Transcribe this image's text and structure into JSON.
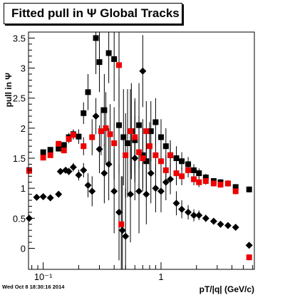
{
  "header": {
    "title": "Fitted pull in Ψ   Global Tracks"
  },
  "footer": {
    "timestamp": "Wed Oct  8 18:30:16 2014"
  },
  "chart_data": {
    "type": "scatter",
    "title": "Fitted pull in Ψ   Global Tracks",
    "xlabel": "pT/|q| (GeV/c)",
    "ylabel": "pull in Ψ",
    "xscale": "log",
    "xlim": [
      0.075,
      6.2
    ],
    "ylim": [
      -0.35,
      3.6
    ],
    "x_ticks": [
      {
        "v": 0.1,
        "label": "10⁻¹"
      },
      {
        "v": 1,
        "label": "1"
      }
    ],
    "y_ticks": [
      0,
      0.5,
      1,
      1.5,
      2,
      2.5,
      3,
      3.5
    ],
    "grid": false,
    "series": [
      {
        "marker": "square",
        "color": "#000000",
        "points": [
          [
            0.076,
            1.3,
            0.04
          ],
          [
            0.1,
            1.6,
            0.04
          ],
          [
            0.115,
            1.64,
            0.04
          ],
          [
            0.135,
            1.66,
            0.05
          ],
          [
            0.15,
            1.72,
            0.05
          ],
          [
            0.165,
            1.85,
            0.07
          ],
          [
            0.18,
            1.9,
            0.08
          ],
          [
            0.2,
            1.86,
            0.12
          ],
          [
            0.22,
            2.25,
            0.18
          ],
          [
            0.24,
            2.6,
            0.3
          ],
          [
            0.28,
            3.5,
            0.6
          ],
          [
            0.3,
            3.1,
            0.5
          ],
          [
            0.33,
            2.3,
            0.6
          ],
          [
            0.36,
            3.25,
            0.5
          ],
          [
            0.4,
            3.15,
            0.7
          ],
          [
            0.44,
            2.05,
            0.8
          ],
          [
            0.48,
            1.85,
            0.8
          ],
          [
            0.52,
            1.75,
            0.9
          ],
          [
            0.56,
            1.95,
            0.8
          ],
          [
            0.6,
            1.8,
            0.7
          ],
          [
            0.65,
            2.05,
            0.7
          ],
          [
            0.7,
            1.55,
            0.6
          ],
          [
            0.75,
            1.45,
            0.5
          ],
          [
            0.82,
            1.95,
            0.5
          ],
          [
            0.9,
            2.1,
            0.4
          ],
          [
            1.0,
            1.85,
            0.3
          ],
          [
            1.1,
            1.7,
            0.3
          ],
          [
            1.2,
            1.55,
            0.25
          ],
          [
            1.35,
            1.5,
            0.2
          ],
          [
            1.5,
            1.45,
            0.15
          ],
          [
            1.7,
            1.4,
            0.12
          ],
          [
            1.9,
            1.3,
            0.1
          ],
          [
            2.1,
            1.25,
            0.08
          ],
          [
            2.4,
            1.18,
            0.06
          ],
          [
            2.8,
            1.12,
            0.05
          ],
          [
            3.2,
            1.1,
            0.05
          ],
          [
            3.7,
            1.08,
            0.05
          ],
          [
            4.3,
            1.02,
            0.05
          ],
          [
            5.6,
            0.98,
            0.05
          ]
        ]
      },
      {
        "marker": "square",
        "color": "#ee0000",
        "points": [
          [
            0.076,
            1.29,
            0.04
          ],
          [
            0.1,
            1.51,
            0.04
          ],
          [
            0.115,
            1.55,
            0.04
          ],
          [
            0.135,
            1.74,
            0.05
          ],
          [
            0.15,
            1.63,
            0.05
          ],
          [
            0.165,
            1.82,
            0.07
          ],
          [
            0.18,
            1.89,
            0.08
          ],
          [
            0.22,
            1.7,
            0.15
          ],
          [
            0.26,
            1.85,
            0.3
          ],
          [
            0.31,
            1.95,
            0.4
          ],
          [
            0.34,
            2.0,
            0.6
          ],
          [
            0.37,
            1.9,
            0.5
          ],
          [
            0.4,
            1.75,
            0.6
          ],
          [
            0.44,
            3.05,
            0.7
          ],
          [
            0.46,
            0.4,
            0.8
          ],
          [
            0.5,
            1.55,
            0.7
          ],
          [
            0.55,
            1.95,
            0.7
          ],
          [
            0.6,
            1.85,
            0.6
          ],
          [
            0.65,
            1.6,
            0.6
          ],
          [
            0.7,
            1.5,
            0.5
          ],
          [
            0.75,
            1.95,
            0.5
          ],
          [
            0.8,
            1.7,
            0.4
          ],
          [
            0.9,
            1.55,
            0.35
          ],
          [
            1.0,
            1.45,
            0.3
          ],
          [
            1.1,
            1.3,
            0.25
          ],
          [
            1.2,
            1.55,
            0.2
          ],
          [
            1.35,
            1.25,
            0.2
          ],
          [
            1.5,
            1.2,
            0.15
          ],
          [
            1.7,
            1.3,
            0.12
          ],
          [
            1.9,
            1.15,
            0.1
          ],
          [
            2.1,
            1.1,
            0.08
          ],
          [
            2.4,
            1.12,
            0.06
          ],
          [
            2.8,
            1.08,
            0.05
          ],
          [
            3.2,
            1.06,
            0.05
          ],
          [
            3.7,
            1.08,
            0.05
          ],
          [
            4.3,
            0.95,
            0.05
          ],
          [
            5.6,
            -0.15,
            0.05
          ]
        ]
      },
      {
        "marker": "diamond",
        "color": "#000000",
        "points": [
          [
            0.076,
            0.5,
            0.04
          ],
          [
            0.088,
            0.85,
            0.04
          ],
          [
            0.1,
            0.86,
            0.04
          ],
          [
            0.115,
            0.84,
            0.04
          ],
          [
            0.135,
            0.9,
            0.05
          ],
          [
            0.14,
            1.28,
            0.05
          ],
          [
            0.155,
            1.3,
            0.05
          ],
          [
            0.165,
            1.28,
            0.06
          ],
          [
            0.18,
            1.35,
            0.07
          ],
          [
            0.2,
            1.22,
            0.09
          ],
          [
            0.22,
            1.3,
            0.12
          ],
          [
            0.24,
            1.05,
            0.2
          ],
          [
            0.26,
            0.95,
            0.25
          ],
          [
            0.28,
            2.2,
            0.3
          ],
          [
            0.3,
            1.65,
            0.4
          ],
          [
            0.33,
            1.25,
            0.5
          ],
          [
            0.36,
            1.4,
            0.6
          ],
          [
            0.4,
            0.95,
            0.7
          ],
          [
            0.44,
            0.6,
            0.8
          ],
          [
            0.47,
            0.3,
            0.9
          ],
          [
            0.5,
            0.2,
            0.8
          ],
          [
            0.55,
            0.9,
            0.8
          ],
          [
            0.6,
            1.5,
            0.7
          ],
          [
            0.65,
            0.95,
            0.7
          ],
          [
            0.7,
            2.95,
            0.6
          ],
          [
            0.75,
            0.9,
            0.5
          ],
          [
            0.82,
            1.25,
            0.5
          ],
          [
            0.9,
            1.0,
            0.4
          ],
          [
            1.0,
            0.95,
            0.35
          ],
          [
            1.1,
            1.1,
            0.3
          ],
          [
            1.2,
            1.15,
            0.25
          ],
          [
            1.35,
            0.75,
            0.2
          ],
          [
            1.5,
            0.65,
            0.15
          ],
          [
            1.7,
            0.6,
            0.12
          ],
          [
            1.9,
            0.55,
            0.1
          ],
          [
            2.1,
            0.55,
            0.08
          ],
          [
            2.4,
            0.5,
            0.06
          ],
          [
            2.8,
            0.45,
            0.05
          ],
          [
            3.2,
            0.4,
            0.05
          ],
          [
            3.7,
            0.38,
            0.05
          ],
          [
            4.3,
            0.35,
            0.05
          ],
          [
            5.6,
            0.05,
            0.05
          ]
        ]
      }
    ]
  }
}
